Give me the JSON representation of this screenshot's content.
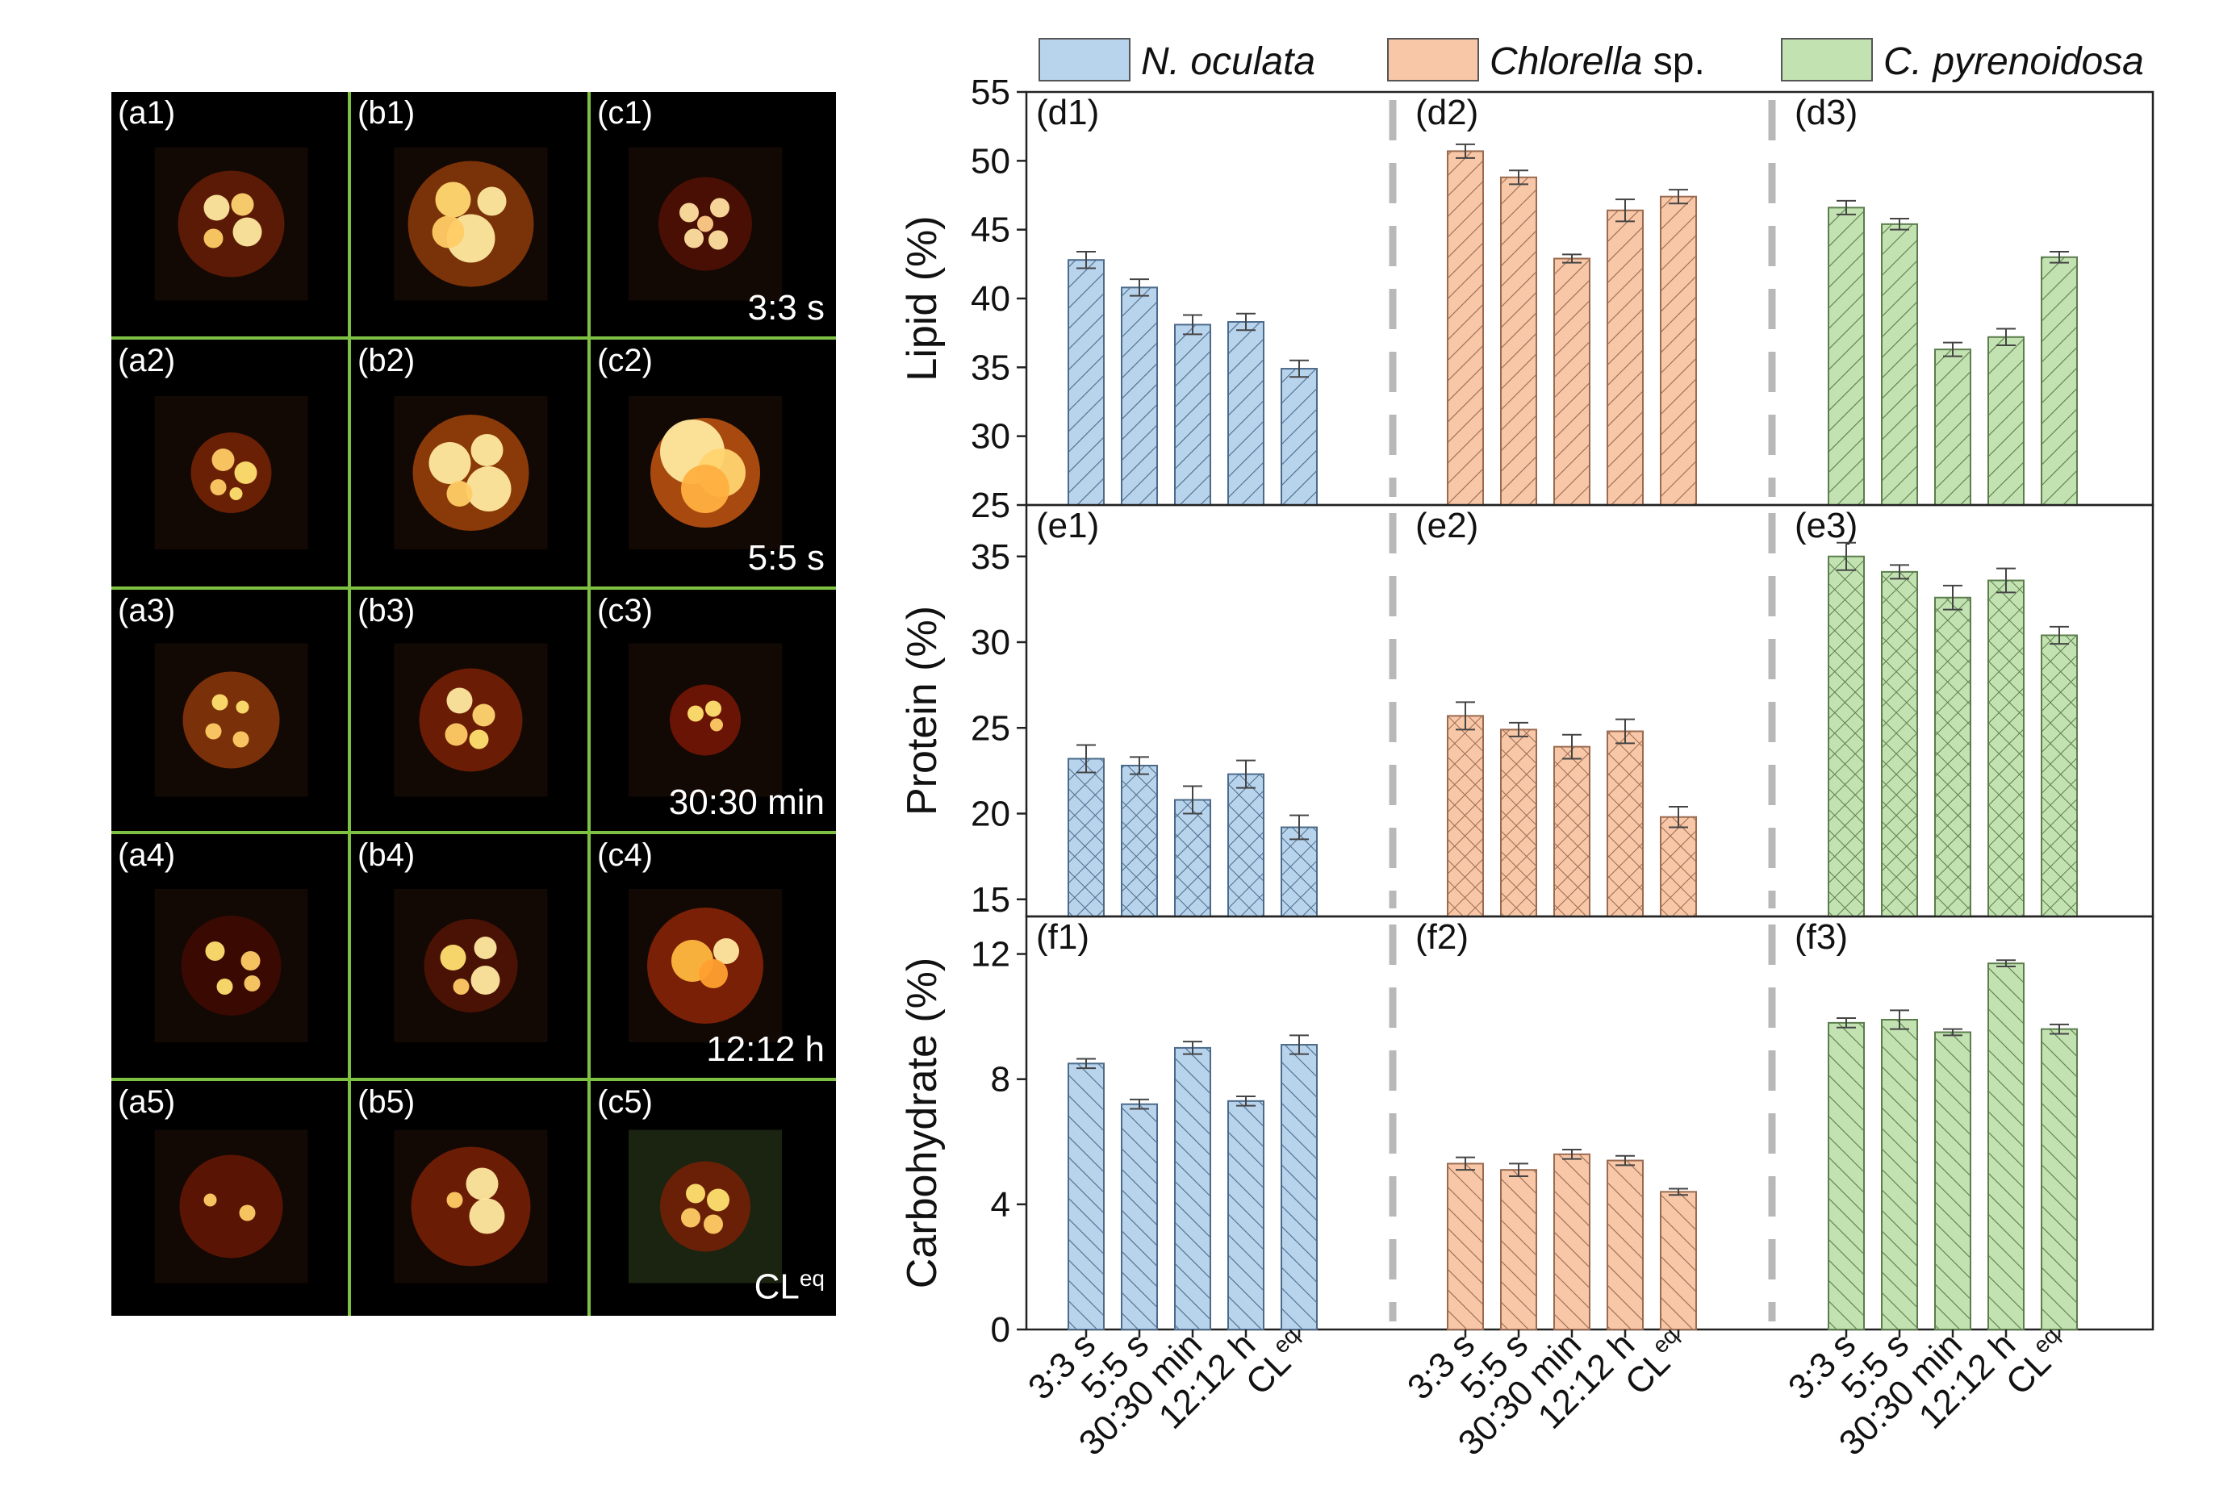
{
  "micrographs": {
    "rows": [
      {
        "labels": [
          "(a1)",
          "(b1)",
          "(c1)"
        ],
        "condition": "3:3 s"
      },
      {
        "labels": [
          "(a2)",
          "(b2)",
          "(c2)"
        ],
        "condition": "5:5 s"
      },
      {
        "labels": [
          "(a3)",
          "(b3)",
          "(c3)"
        ],
        "condition": "30:30 min"
      },
      {
        "labels": [
          "(a4)",
          "(b4)",
          "(c4)"
        ],
        "condition": "12:12 h"
      },
      {
        "labels": [
          "(a5)",
          "(b5)",
          "(c5)"
        ],
        "condition": "CLeq"
      }
    ]
  },
  "chart_data": {
    "type": "bar",
    "categories": [
      "3:3 s",
      "5:5 s",
      "30:30 min",
      "12:12 h",
      "CLeq"
    ],
    "legend": [
      {
        "name": "N. oculata",
        "color": "#b8d3ec"
      },
      {
        "name": "Chlorella sp.",
        "color": "#f8c7a8"
      },
      {
        "name": "C. pyrenoidosa",
        "color": "#c2e2b2"
      }
    ],
    "panels": [
      {
        "ylabel": "Lipid (%)",
        "ylim": [
          25,
          55
        ],
        "yticks": [
          25,
          30,
          35,
          40,
          45,
          50,
          55
        ],
        "pattern": "diag",
        "groups": [
          {
            "label": "(d1)",
            "series": "N. oculata",
            "values": [
              42.8,
              40.8,
              38.1,
              38.3,
              34.9
            ],
            "errors": [
              0.6,
              0.6,
              0.7,
              0.6,
              0.6
            ]
          },
          {
            "label": "(d2)",
            "series": "Chlorella sp.",
            "values": [
              50.7,
              48.8,
              42.9,
              46.4,
              47.4
            ],
            "errors": [
              0.5,
              0.5,
              0.3,
              0.8,
              0.5
            ]
          },
          {
            "label": "(d3)",
            "series": "C. pyrenoidosa",
            "values": [
              46.6,
              45.4,
              36.3,
              37.2,
              43.0
            ],
            "errors": [
              0.5,
              0.4,
              0.5,
              0.6,
              0.4
            ]
          }
        ]
      },
      {
        "ylabel": "Protein (%)",
        "ylim": [
          14,
          38
        ],
        "yticks": [
          15,
          20,
          25,
          30,
          35
        ],
        "pattern": "cross",
        "groups": [
          {
            "label": "(e1)",
            "series": "N. oculata",
            "values": [
              23.2,
              22.8,
              20.8,
              22.3,
              19.2
            ],
            "errors": [
              0.8,
              0.5,
              0.8,
              0.8,
              0.7
            ]
          },
          {
            "label": "(e2)",
            "series": "Chlorella sp.",
            "values": [
              25.7,
              24.9,
              23.9,
              24.8,
              19.8
            ],
            "errors": [
              0.8,
              0.4,
              0.7,
              0.7,
              0.6
            ]
          },
          {
            "label": "(e3)",
            "series": "C. pyrenoidosa",
            "values": [
              35.0,
              34.1,
              32.6,
              33.6,
              30.4
            ],
            "errors": [
              0.8,
              0.4,
              0.7,
              0.7,
              0.5
            ]
          }
        ]
      },
      {
        "ylabel": "Carbohydrate (%)",
        "ylim": [
          0,
          13.2
        ],
        "yticks": [
          0,
          4,
          8,
          12
        ],
        "pattern": "diag2",
        "groups": [
          {
            "label": "(f1)",
            "series": "N. oculata",
            "values": [
              8.5,
              7.2,
              9.0,
              7.3,
              9.1
            ],
            "errors": [
              0.15,
              0.15,
              0.2,
              0.15,
              0.3
            ]
          },
          {
            "label": "(f2)",
            "series": "Chlorella sp.",
            "values": [
              5.3,
              5.1,
              5.6,
              5.4,
              4.4
            ],
            "errors": [
              0.2,
              0.2,
              0.15,
              0.15,
              0.1
            ]
          },
          {
            "label": "(f3)",
            "series": "C. pyrenoidosa",
            "values": [
              9.8,
              9.9,
              9.5,
              11.7,
              9.6
            ],
            "errors": [
              0.15,
              0.3,
              0.1,
              0.1,
              0.15
            ]
          }
        ]
      }
    ],
    "colors": {
      "N. oculata": "#b8d3ec",
      "Chlorella sp.": "#f8c7a8",
      "C. pyrenoidosa": "#c2e2b2"
    },
    "stroke_colors": {
      "N. oculata": "#4c6b8a",
      "Chlorella sp.": "#9a6b50",
      "C. pyrenoidosa": "#5c7d4c"
    }
  }
}
